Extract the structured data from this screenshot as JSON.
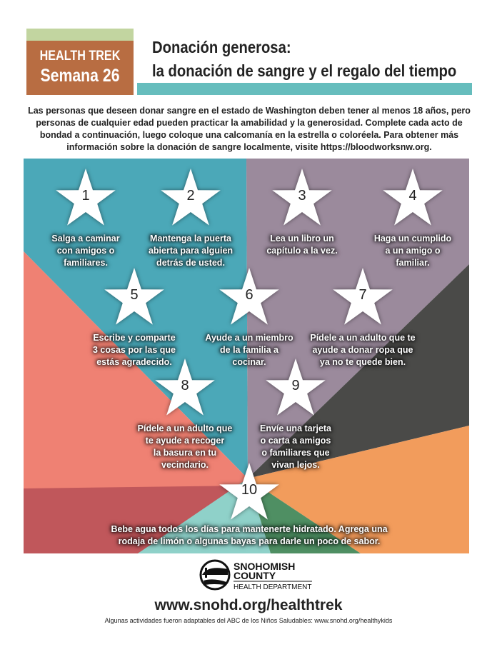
{
  "header": {
    "badge_line1": "HEALTH TREK",
    "badge_line2": "Semana 26",
    "title_line1": "Donación generosa:",
    "title_line2": "la donación de sangre y el regalo del tiempo"
  },
  "intro": "Las personas que deseen donar sangre en el estado de Washington deben tener al menos 18 años, pero personas de cualquier edad pueden practicar la amabilidad y la generosidad. Complete cada acto de bondad a continuación, luego coloque una calcomanía en la estrella o coloréela. Para obtener más información sobre la donación de sangre localmente, visite https://bloodworksnw.org.",
  "colors": {
    "teal": "#4ba8b8",
    "purple": "#9b8a9c",
    "grey": "#4a4a48",
    "orange": "#f29c5c",
    "salmon": "#ef8173",
    "darkred": "#c0575b",
    "mint": "#8fd1c9",
    "green": "#4f8f63",
    "badge": "#b86d42",
    "title_bar": "#66bdbd"
  },
  "activities": [
    {
      "number": "1",
      "text": [
        "Salga a caminar",
        "con amigos o",
        "familiares."
      ]
    },
    {
      "number": "2",
      "text": [
        "Mantenga la puerta",
        "abierta para alguien",
        "detrás de usted."
      ]
    },
    {
      "number": "3",
      "text": [
        "Lea un libro un",
        "capítulo a la vez."
      ]
    },
    {
      "number": "4",
      "text": [
        "Haga un cumplido",
        "a un amigo o",
        "familiar."
      ]
    },
    {
      "number": "5",
      "text": [
        "Escribe y comparte",
        "3 cosas por las que",
        "estás agradecido."
      ]
    },
    {
      "number": "6",
      "text": [
        "Ayude a un miembro",
        "de la familia a",
        "cocinar."
      ]
    },
    {
      "number": "7",
      "text": [
        "Pídele a un adulto que te",
        "ayude a donar ropa que",
        "ya no te quede bien."
      ]
    },
    {
      "number": "8",
      "text": [
        "Pídele a un adulto que",
        "te ayude a recoger",
        "la basura en tu",
        "vecindario."
      ]
    },
    {
      "number": "9",
      "text": [
        "Envíe una tarjeta",
        "o carta a amigos",
        "o familiares que",
        "vivan lejos."
      ]
    },
    {
      "number": "10",
      "text": [
        "Bebe agua todos los días para mantenerte hidratado. Agrega una",
        "rodaja de limón o algunas bayas para darle un poco de sabor."
      ]
    }
  ],
  "footer": {
    "logo_line1": "SNOHOMISH",
    "logo_line2": "COUNTY",
    "logo_line3": "HEALTH DEPARTMENT",
    "url": "www.snohd.org/healthtrek",
    "credit": "Algunas actividades fueron adaptables del ABC de los Niños Saludables: www.snohd.org/healthykids"
  }
}
